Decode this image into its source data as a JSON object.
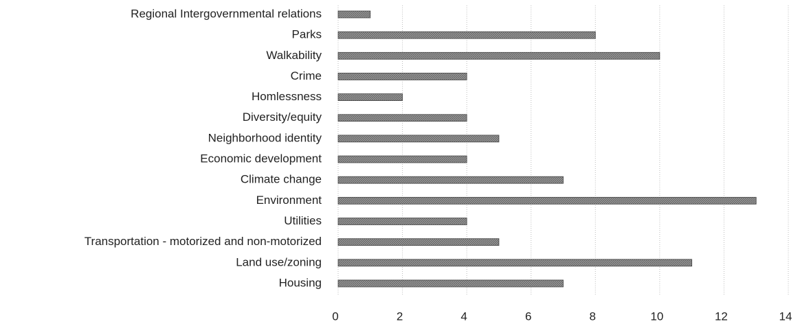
{
  "chart_data": {
    "type": "barh",
    "categories": [
      "Regional Intergovernmental relations",
      "Parks",
      "Walkability",
      "Crime",
      "Homlessness",
      "Diversity/equity",
      "Neighborhood identity",
      "Economic development",
      "Climate change",
      "Environment",
      "Utilities",
      "Transportation - motorized and non-motorized",
      "Land use/zoning",
      "Housing"
    ],
    "values": [
      1,
      8,
      10,
      4,
      2,
      4,
      5,
      4,
      7,
      13,
      4,
      5,
      11,
      7
    ],
    "color": "#8a8a8a",
    "xlim": [
      0,
      14
    ],
    "xticks": [
      0,
      2,
      4,
      6,
      8,
      10,
      12,
      14
    ],
    "grid": true
  }
}
